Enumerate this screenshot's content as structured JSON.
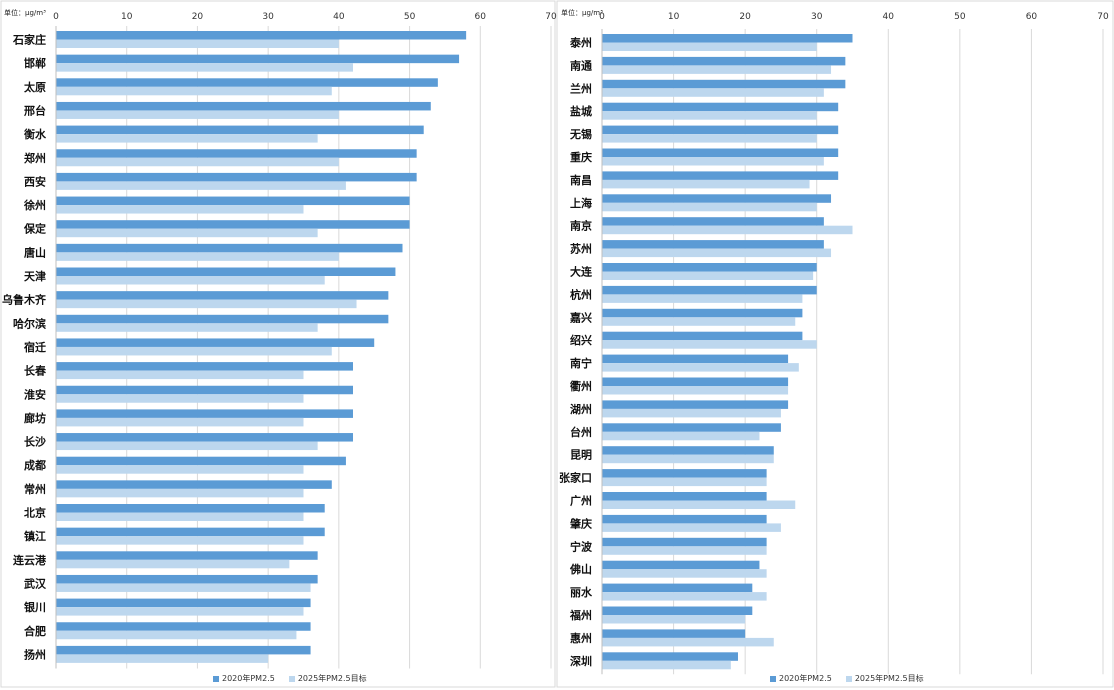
{
  "colors": {
    "series_2020": "#5b9bd5",
    "series_2025": "#bdd7ee",
    "grid": "#d9d9d9",
    "panel_border": "#d9d9d9"
  },
  "chart_data": [
    {
      "type": "bar",
      "orientation": "horizontal",
      "unit_label": "单位：μg/m³",
      "xlim": [
        0,
        70
      ],
      "xticks": [
        0,
        10,
        20,
        30,
        40,
        50,
        60,
        70
      ],
      "grid": true,
      "legend_position": "bottom",
      "categories": [
        "石家庄",
        "邯郸",
        "太原",
        "邢台",
        "衡水",
        "郑州",
        "西安",
        "徐州",
        "保定",
        "唐山",
        "天津",
        "乌鲁木齐",
        "哈尔滨",
        "宿迁",
        "长春",
        "淮安",
        "廊坊",
        "长沙",
        "成都",
        "常州",
        "北京",
        "镇江",
        "连云港",
        "武汉",
        "银川",
        "合肥",
        "扬州"
      ],
      "series": [
        {
          "name": "2020年PM2.5",
          "values": [
            58,
            57,
            54,
            53,
            52,
            51,
            51,
            50,
            50,
            49,
            48,
            47,
            47,
            45,
            42,
            42,
            42,
            42,
            41,
            39,
            38,
            38,
            37,
            37,
            36,
            36,
            36
          ]
        },
        {
          "name": "2025年PM2.5目标",
          "values": [
            40,
            42,
            39,
            40,
            37,
            40,
            41,
            35,
            37,
            40,
            38,
            42.5,
            37,
            39,
            35,
            35,
            35,
            37,
            35,
            35,
            35,
            35,
            33,
            36,
            35,
            34,
            30
          ]
        }
      ]
    },
    {
      "type": "bar",
      "orientation": "horizontal",
      "unit_label": "单位：μg/m³",
      "xlim": [
        0,
        70
      ],
      "xticks": [
        0,
        10,
        20,
        30,
        40,
        50,
        60,
        70
      ],
      "grid": true,
      "legend_position": "bottom",
      "categories": [
        "泰州",
        "南通",
        "兰州",
        "盐城",
        "无锡",
        "重庆",
        "南昌",
        "上海",
        "南京",
        "苏州",
        "大连",
        "杭州",
        "嘉兴",
        "绍兴",
        "南宁",
        "衢州",
        "湖州",
        "台州",
        "昆明",
        "张家口",
        "广州",
        "肇庆",
        "宁波",
        "佛山",
        "丽水",
        "福州",
        "惠州",
        "深圳"
      ],
      "series": [
        {
          "name": "2020年PM2.5",
          "values": [
            35,
            34,
            34,
            33,
            33,
            33,
            33,
            32,
            31,
            31,
            30,
            30,
            28,
            28,
            26,
            26,
            26,
            25,
            24,
            23,
            23,
            23,
            23,
            22,
            21,
            21,
            20,
            19
          ]
        },
        {
          "name": "2025年PM2.5目标",
          "values": [
            30,
            32,
            31,
            30,
            30,
            31,
            29,
            30,
            35,
            32,
            29.5,
            28,
            27,
            30,
            27.5,
            26,
            25,
            22,
            24,
            23,
            27,
            25,
            23,
            23,
            23,
            20,
            24,
            18
          ]
        }
      ]
    }
  ]
}
